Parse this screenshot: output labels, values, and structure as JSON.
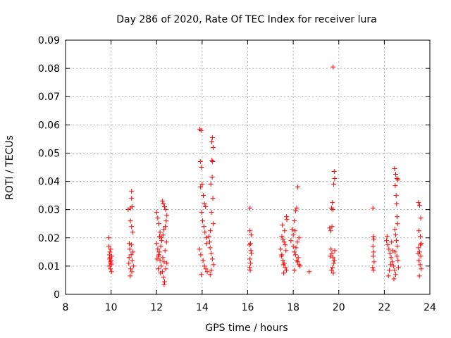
{
  "chart_data": {
    "type": "scatter",
    "title": "Day 286 of 2020, Rate Of TEC Index for receiver lura",
    "xlabel": "GPS time / hours",
    "ylabel": "ROTI / TECUs",
    "xlim": [
      8,
      24
    ],
    "ylim": [
      0,
      0.09
    ],
    "x_ticks": [
      "8",
      "10",
      "12",
      "14",
      "16",
      "18",
      "20",
      "22",
      "24"
    ],
    "y_ticks": [
      "0",
      "0.01",
      "0.02",
      "0.03",
      "0.04",
      "0.05",
      "0.06",
      "0.07",
      "0.08",
      "0.09"
    ],
    "grid": true,
    "marker": "+",
    "color": "#ff0000",
    "series": [
      {
        "points": [
          [
            9.9,
            0.02
          ],
          [
            9.9,
            0.017
          ],
          [
            9.95,
            0.015
          ],
          [
            9.95,
            0.013
          ],
          [
            10.0,
            0.012
          ],
          [
            10.0,
            0.011
          ],
          [
            9.92,
            0.01
          ],
          [
            9.97,
            0.009
          ],
          [
            10.02,
            0.008
          ],
          [
            9.93,
            0.014
          ],
          [
            9.98,
            0.016
          ],
          [
            10.03,
            0.0135
          ],
          [
            9.96,
            0.0115
          ],
          [
            10.01,
            0.0105
          ],
          [
            9.94,
            0.0125
          ],
          [
            10.75,
            0.03
          ],
          [
            10.85,
            0.0305
          ],
          [
            10.9,
            0.0365
          ],
          [
            10.9,
            0.034
          ],
          [
            10.92,
            0.031
          ],
          [
            10.85,
            0.026
          ],
          [
            10.9,
            0.024
          ],
          [
            10.95,
            0.022
          ],
          [
            10.8,
            0.018
          ],
          [
            10.82,
            0.016
          ],
          [
            10.88,
            0.014
          ],
          [
            10.93,
            0.012
          ],
          [
            10.78,
            0.011
          ],
          [
            10.98,
            0.01
          ],
          [
            10.86,
            0.009
          ],
          [
            10.91,
            0.008
          ],
          [
            10.84,
            0.0065
          ],
          [
            10.96,
            0.015
          ],
          [
            10.79,
            0.013
          ],
          [
            10.89,
            0.0175
          ],
          [
            12.0,
            0.029
          ],
          [
            12.05,
            0.027
          ],
          [
            12.1,
            0.025
          ],
          [
            12.15,
            0.022
          ],
          [
            12.2,
            0.02
          ],
          [
            12.25,
            0.033
          ],
          [
            12.3,
            0.032
          ],
          [
            12.35,
            0.031
          ],
          [
            12.4,
            0.03
          ],
          [
            12.45,
            0.028
          ],
          [
            12.0,
            0.018
          ],
          [
            12.05,
            0.016
          ],
          [
            12.1,
            0.014
          ],
          [
            12.15,
            0.012
          ],
          [
            12.2,
            0.01
          ],
          [
            12.25,
            0.008
          ],
          [
            12.3,
            0.006
          ],
          [
            12.33,
            0.0035
          ],
          [
            12.35,
            0.0045
          ],
          [
            12.4,
            0.009
          ],
          [
            12.45,
            0.011
          ],
          [
            12.02,
            0.0125
          ],
          [
            12.08,
            0.0135
          ],
          [
            12.12,
            0.015
          ],
          [
            12.18,
            0.017
          ],
          [
            12.22,
            0.019
          ],
          [
            12.28,
            0.021
          ],
          [
            12.32,
            0.023
          ],
          [
            12.38,
            0.024
          ],
          [
            12.42,
            0.026
          ],
          [
            12.07,
            0.009
          ],
          [
            12.27,
            0.013
          ],
          [
            12.37,
            0.0155
          ],
          [
            12.17,
            0.0075
          ],
          [
            12.43,
            0.0185
          ],
          [
            12.13,
            0.0205
          ],
          [
            12.33,
            0.0115
          ],
          [
            13.9,
            0.0585
          ],
          [
            13.95,
            0.058
          ],
          [
            13.92,
            0.047
          ],
          [
            13.97,
            0.045
          ],
          [
            14.0,
            0.039
          ],
          [
            13.93,
            0.038
          ],
          [
            14.05,
            0.035
          ],
          [
            14.1,
            0.032
          ],
          [
            14.15,
            0.031
          ],
          [
            13.98,
            0.029
          ],
          [
            14.02,
            0.026
          ],
          [
            14.08,
            0.024
          ],
          [
            14.12,
            0.022
          ],
          [
            14.18,
            0.02
          ],
          [
            14.2,
            0.018
          ],
          [
            13.88,
            0.016
          ],
          [
            13.94,
            0.014
          ],
          [
            14.04,
            0.012
          ],
          [
            14.1,
            0.01
          ],
          [
            14.16,
            0.009
          ],
          [
            14.22,
            0.008
          ],
          [
            13.96,
            0.007
          ],
          [
            14.3,
            0.0205
          ],
          [
            14.35,
            0.0165
          ],
          [
            14.4,
            0.0145
          ],
          [
            14.45,
            0.0125
          ],
          [
            14.5,
            0.0105
          ],
          [
            14.4,
            0.0085
          ],
          [
            14.35,
            0.007
          ],
          [
            14.45,
            0.0555
          ],
          [
            14.42,
            0.054
          ],
          [
            14.48,
            0.052
          ],
          [
            14.43,
            0.0475
          ],
          [
            14.46,
            0.047
          ],
          [
            14.44,
            0.0415
          ],
          [
            14.38,
            0.039
          ],
          [
            14.47,
            0.034
          ],
          [
            14.41,
            0.029
          ],
          [
            14.49,
            0.025
          ],
          [
            14.36,
            0.0225
          ],
          [
            14.33,
            0.0185
          ],
          [
            16.1,
            0.0305
          ],
          [
            16.1,
            0.0225
          ],
          [
            16.15,
            0.021
          ],
          [
            16.12,
            0.018
          ],
          [
            16.08,
            0.0175
          ],
          [
            16.14,
            0.0155
          ],
          [
            16.1,
            0.0125
          ],
          [
            16.13,
            0.011
          ],
          [
            16.09,
            0.0095
          ],
          [
            16.11,
            0.0085
          ],
          [
            16.16,
            0.0145
          ],
          [
            17.5,
            0.0205
          ],
          [
            17.55,
            0.0195
          ],
          [
            17.6,
            0.0185
          ],
          [
            17.65,
            0.0175
          ],
          [
            17.7,
            0.0275
          ],
          [
            17.72,
            0.0265
          ],
          [
            17.45,
            0.016
          ],
          [
            17.5,
            0.014
          ],
          [
            17.55,
            0.012
          ],
          [
            17.6,
            0.011
          ],
          [
            17.65,
            0.0095
          ],
          [
            17.7,
            0.0085
          ],
          [
            17.58,
            0.0075
          ],
          [
            17.62,
            0.0225
          ],
          [
            17.52,
            0.0245
          ],
          [
            17.68,
            0.0155
          ],
          [
            17.48,
            0.0135
          ],
          [
            17.57,
            0.0105
          ],
          [
            17.9,
            0.019
          ],
          [
            18.0,
            0.021
          ],
          [
            18.05,
            0.026
          ],
          [
            18.1,
            0.0295
          ],
          [
            18.15,
            0.0305
          ],
          [
            18.2,
            0.038
          ],
          [
            18.25,
            0.02
          ],
          [
            18.0,
            0.017
          ],
          [
            18.05,
            0.015
          ],
          [
            18.1,
            0.014
          ],
          [
            18.15,
            0.012
          ],
          [
            18.2,
            0.0115
          ],
          [
            18.25,
            0.0105
          ],
          [
            18.3,
            0.01
          ],
          [
            18.05,
            0.0085
          ],
          [
            17.95,
            0.023
          ],
          [
            18.12,
            0.0165
          ],
          [
            18.22,
            0.013
          ],
          [
            18.08,
            0.0225
          ],
          [
            18.18,
            0.0185
          ],
          [
            18.7,
            0.008
          ],
          [
            19.6,
            0.0235
          ],
          [
            19.65,
            0.0225
          ],
          [
            19.7,
            0.024
          ],
          [
            19.75,
            0.0805
          ],
          [
            19.8,
            0.0435
          ],
          [
            19.82,
            0.041
          ],
          [
            19.78,
            0.039
          ],
          [
            19.72,
            0.0325
          ],
          [
            19.68,
            0.0305
          ],
          [
            19.74,
            0.03
          ],
          [
            19.66,
            0.016
          ],
          [
            19.7,
            0.0145
          ],
          [
            19.75,
            0.013
          ],
          [
            19.8,
            0.012
          ],
          [
            19.78,
            0.011
          ],
          [
            19.72,
            0.0095
          ],
          [
            19.68,
            0.0085
          ],
          [
            19.76,
            0.0075
          ],
          [
            19.82,
            0.0155
          ],
          [
            19.62,
            0.0135
          ],
          [
            21.5,
            0.0305
          ],
          [
            21.52,
            0.0205
          ],
          [
            21.54,
            0.0195
          ],
          [
            21.5,
            0.017
          ],
          [
            21.53,
            0.015
          ],
          [
            21.51,
            0.0135
          ],
          [
            21.55,
            0.0115
          ],
          [
            21.49,
            0.0095
          ],
          [
            21.52,
            0.0085
          ],
          [
            22.1,
            0.019
          ],
          [
            22.15,
            0.0175
          ],
          [
            22.2,
            0.016
          ],
          [
            22.25,
            0.0145
          ],
          [
            22.3,
            0.013
          ],
          [
            22.35,
            0.0115
          ],
          [
            22.4,
            0.01
          ],
          [
            22.45,
            0.0085
          ],
          [
            22.5,
            0.007
          ],
          [
            22.42,
            0.0055
          ],
          [
            22.18,
            0.0065
          ],
          [
            22.22,
            0.0085
          ],
          [
            22.28,
            0.0105
          ],
          [
            22.45,
            0.0445
          ],
          [
            22.5,
            0.0425
          ],
          [
            22.55,
            0.041
          ],
          [
            22.6,
            0.0405
          ],
          [
            22.48,
            0.0385
          ],
          [
            22.52,
            0.035
          ],
          [
            22.54,
            0.032
          ],
          [
            22.56,
            0.0275
          ],
          [
            22.58,
            0.025
          ],
          [
            22.46,
            0.023
          ],
          [
            22.5,
            0.021
          ],
          [
            22.53,
            0.019
          ],
          [
            22.57,
            0.017
          ],
          [
            22.47,
            0.015
          ],
          [
            22.55,
            0.0135
          ],
          [
            22.6,
            0.012
          ],
          [
            22.12,
            0.0205
          ],
          [
            22.32,
            0.0185
          ],
          [
            22.38,
            0.0155
          ],
          [
            22.62,
            0.0095
          ],
          [
            23.5,
            0.0325
          ],
          [
            23.55,
            0.0315
          ],
          [
            23.6,
            0.027
          ],
          [
            23.52,
            0.0225
          ],
          [
            23.58,
            0.0205
          ],
          [
            23.62,
            0.018
          ],
          [
            23.5,
            0.0165
          ],
          [
            23.55,
            0.015
          ],
          [
            23.6,
            0.0135
          ],
          [
            23.52,
            0.012
          ],
          [
            23.57,
            0.0105
          ],
          [
            23.62,
            0.009
          ],
          [
            23.54,
            0.0065
          ],
          [
            23.59,
            0.0175
          ],
          [
            23.48,
            0.0145
          ]
        ]
      }
    ]
  }
}
